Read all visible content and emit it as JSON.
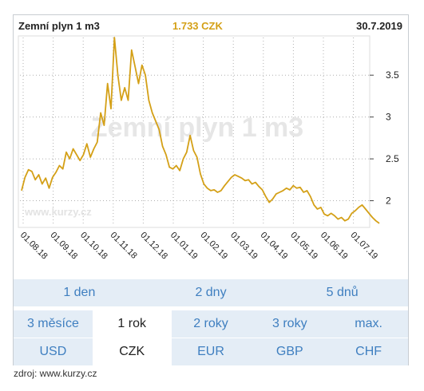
{
  "header": {
    "title": "Zemní plyn 1 m3",
    "price": "1.733 CZK",
    "date": "30.7.2019"
  },
  "watermark": {
    "title": "Zemní plyn 1 m3",
    "site": "www.kurzy.cz"
  },
  "chart_data": {
    "type": "line",
    "title": "Zemní plyn 1 m3",
    "xlabel": "",
    "ylabel": "",
    "yticks": [
      "2",
      "2.5",
      "3",
      "3.5"
    ],
    "ylim": [
      1.7,
      3.95
    ],
    "xticks": [
      "01.08.18",
      "01.09.18",
      "01.10.18",
      "01.11.18",
      "01.12.18",
      "01.01.19",
      "01.02.19",
      "01.03.19",
      "01.04.19",
      "01.05.19",
      "01.06.19",
      "01.07.19"
    ],
    "grid": true,
    "color": "#d4a017",
    "series": [
      {
        "values": [
          2.12,
          2.28,
          2.37,
          2.35,
          2.25,
          2.31,
          2.2,
          2.27,
          2.15,
          2.28,
          2.34,
          2.42,
          2.38,
          2.58,
          2.5,
          2.62,
          2.55,
          2.48,
          2.55,
          2.68,
          2.52,
          2.62,
          2.7,
          3.05,
          2.9,
          3.4,
          3.1,
          3.95,
          3.5,
          3.2,
          3.35,
          3.2,
          3.8,
          3.6,
          3.4,
          3.62,
          3.5,
          3.2,
          3.05,
          2.95,
          2.85,
          2.65,
          2.55,
          2.4,
          2.38,
          2.42,
          2.36,
          2.5,
          2.58,
          2.78,
          2.6,
          2.52,
          2.32,
          2.2,
          2.15,
          2.12,
          2.13,
          2.1,
          2.12,
          2.18,
          2.23,
          2.28,
          2.31,
          2.29,
          2.27,
          2.24,
          2.25,
          2.2,
          2.22,
          2.17,
          2.13,
          2.05,
          1.98,
          2.02,
          2.08,
          2.1,
          2.12,
          2.15,
          2.13,
          2.18,
          2.15,
          2.16,
          2.1,
          2.12,
          2.05,
          1.95,
          1.9,
          1.92,
          1.84,
          1.82,
          1.85,
          1.82,
          1.78,
          1.8,
          1.76,
          1.78,
          1.85,
          1.88,
          1.92,
          1.95,
          1.9,
          1.85,
          1.8,
          1.76,
          1.73
        ]
      }
    ]
  },
  "controls": {
    "row1": [
      "1 den",
      "2 dny",
      "5 dnů"
    ],
    "row2": [
      "3 měsíce",
      "1 rok",
      "2 roky",
      "3 roky",
      "max."
    ],
    "row3": [
      "USD",
      "CZK",
      "EUR",
      "GBP",
      "CHF"
    ],
    "selected_period": "1 rok",
    "selected_currency": "CZK"
  },
  "source": "zdroj: www.kurzy.cz"
}
